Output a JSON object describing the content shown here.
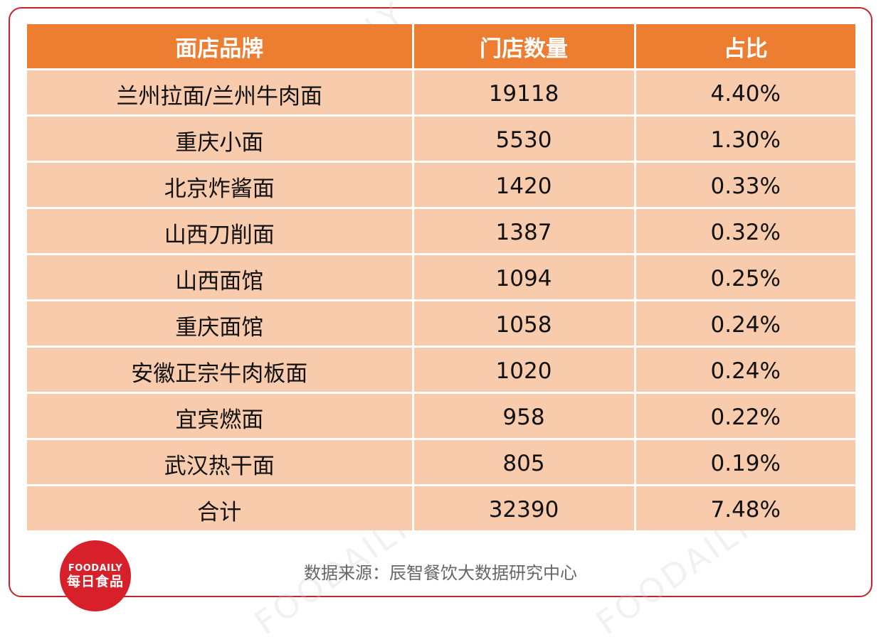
{
  "table": {
    "headers": [
      "面店品牌",
      "门店数量",
      "占比"
    ],
    "rows": [
      [
        "兰州拉面/兰州牛肉面",
        "19118",
        "4.40%"
      ],
      [
        "重庆小面",
        "5530",
        "1.30%"
      ],
      [
        "北京炸酱面",
        "1420",
        "0.33%"
      ],
      [
        "山西刀削面",
        "1387",
        "0.32%"
      ],
      [
        "山西面馆",
        "1094",
        "0.25%"
      ],
      [
        "重庆面馆",
        "1058",
        "0.24%"
      ],
      [
        "安徽正宗牛肉板面",
        "1020",
        "0.24%"
      ],
      [
        "宜宾燃面",
        "958",
        "0.22%"
      ],
      [
        "武汉热干面",
        "805",
        "0.19%"
      ],
      [
        "合计",
        "32390",
        "7.48%"
      ]
    ]
  },
  "source_note": "数据来源：辰智餐饮大数据研究中心",
  "logo": {
    "text_en": "FOODAILY",
    "text_cn": "每日食品"
  },
  "watermark_text": "FOODAILY 每日食品",
  "colors": {
    "header_bg": "#ed7d31",
    "row_bg": "#f8cbad",
    "frame_border": "#c8232a",
    "logo_bg": "#d8202a"
  }
}
